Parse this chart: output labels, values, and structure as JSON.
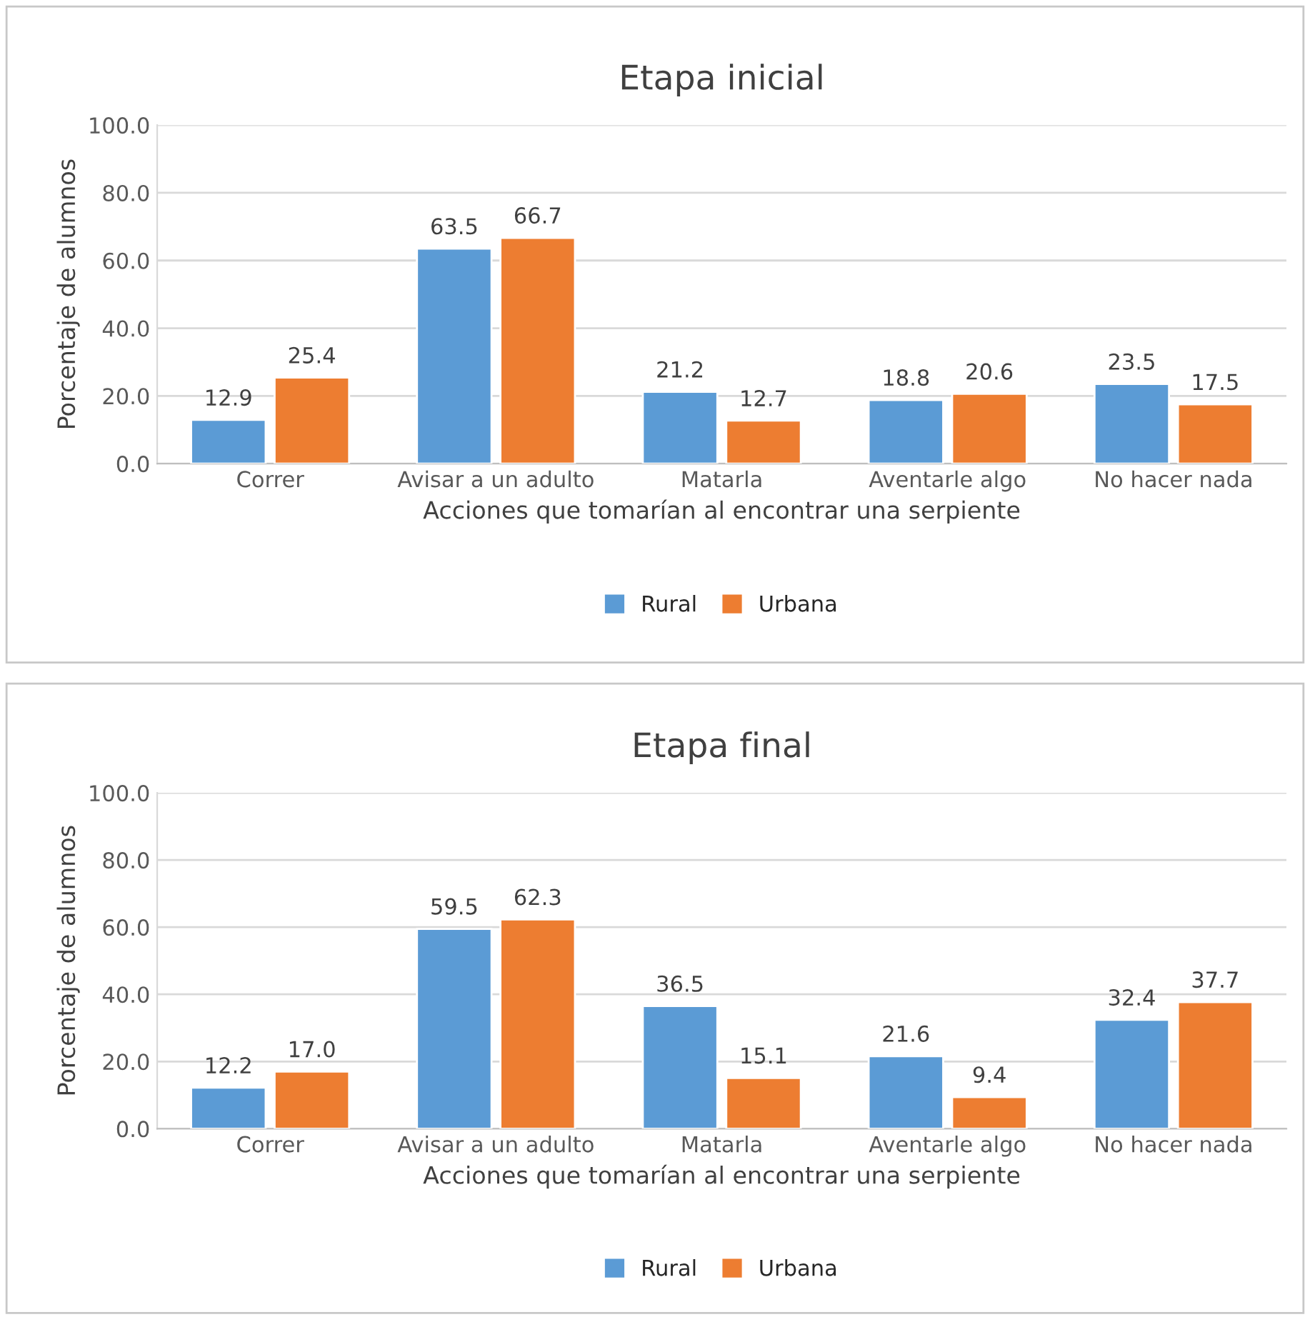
{
  "chart_data": [
    {
      "type": "bar",
      "title": "Etapa inicial",
      "xlabel": "Acciones que tomarían al encontrar una serpiente",
      "ylabel": "Porcentaje de alumnos",
      "categories": [
        "Correr",
        "Avisar a un adulto",
        "Matarla",
        "Aventarle algo",
        "No hacer nada"
      ],
      "series": [
        {
          "name": "Rural",
          "color": "#5b9bd5",
          "values": [
            12.9,
            63.5,
            21.2,
            18.8,
            23.5
          ],
          "value_labels": [
            "12.9",
            "63.5",
            "21.2",
            "18.8",
            "23.5"
          ]
        },
        {
          "name": "Urbana",
          "color": "#ed7d31",
          "values": [
            25.4,
            66.7,
            12.7,
            20.6,
            17.5
          ],
          "value_labels": [
            "25.4",
            "66.7",
            "12.7",
            "20.6",
            "17.5"
          ]
        }
      ],
      "ylim": [
        0,
        100
      ],
      "yticks": [
        {
          "value": 0,
          "label": "0.0"
        },
        {
          "value": 20,
          "label": "20.0"
        },
        {
          "value": 40,
          "label": "40.0"
        },
        {
          "value": 60,
          "label": "60.0"
        },
        {
          "value": 80,
          "label": "80.0"
        },
        {
          "value": 100,
          "label": "100.0"
        }
      ],
      "grid": "y",
      "legend": "bottom"
    },
    {
      "type": "bar",
      "title": "Etapa final",
      "xlabel": "Acciones que tomarían al encontrar una serpiente",
      "ylabel": "Porcentaje de alumnos",
      "categories": [
        "Correr",
        "Avisar a un adulto",
        "Matarla",
        "Aventarle algo",
        "No hacer nada"
      ],
      "series": [
        {
          "name": "Rural",
          "color": "#5b9bd5",
          "values": [
            12.2,
            59.5,
            36.5,
            21.6,
            32.4
          ],
          "value_labels": [
            "12.2",
            "59.5",
            "36.5",
            "21.6",
            "32.4"
          ]
        },
        {
          "name": "Urbana",
          "color": "#ed7d31",
          "values": [
            17,
            62.3,
            15.1,
            9.4,
            37.7
          ],
          "value_labels": [
            "17.0",
            "62.3",
            "15.1",
            "9.4",
            "37.7"
          ]
        }
      ],
      "ylim": [
        0,
        100
      ],
      "yticks": [
        {
          "value": 0,
          "label": "0.0"
        },
        {
          "value": 20,
          "label": "20.0"
        },
        {
          "value": 40,
          "label": "40.0"
        },
        {
          "value": 60,
          "label": "60.0"
        },
        {
          "value": 80,
          "label": "80.0"
        },
        {
          "value": 100,
          "label": "100.0"
        }
      ],
      "grid": "y",
      "legend": "bottom"
    }
  ]
}
